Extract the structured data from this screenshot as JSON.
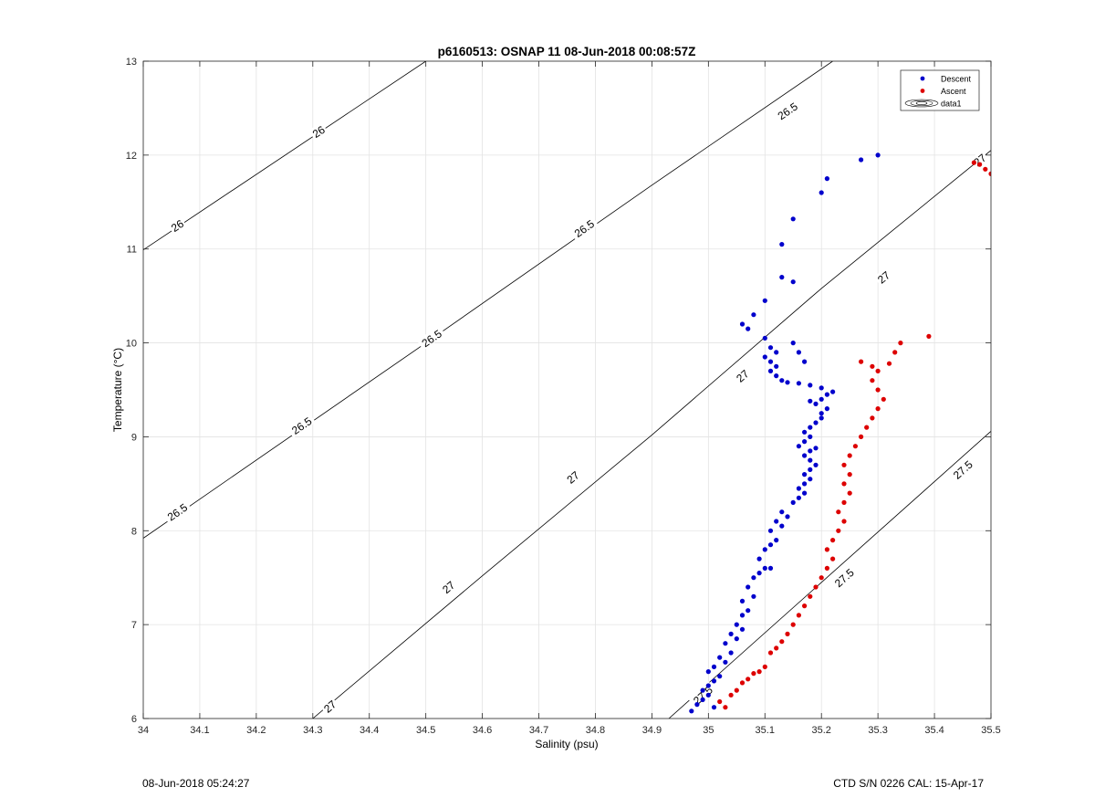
{
  "chart_data": {
    "type": "scatter",
    "title": "p6160513: OSNAP 11 08-Jun-2018 00:08:57Z",
    "xlabel": "Salinity (psu)",
    "ylabel": "Temperature (°C)",
    "xlim": [
      34,
      35.5
    ],
    "ylim": [
      6,
      13
    ],
    "x_ticks": [
      "34",
      "34.1",
      "34.2",
      "34.3",
      "34.4",
      "34.5",
      "34.6",
      "34.7",
      "34.8",
      "34.9",
      "35",
      "35.1",
      "35.2",
      "35.3",
      "35.4",
      "35.5"
    ],
    "y_ticks": [
      "6",
      "7",
      "8",
      "9",
      "10",
      "11",
      "12",
      "13"
    ],
    "grid": true,
    "legend_position": "top-right",
    "legend": [
      "Descent",
      "Ascent",
      "data1"
    ],
    "colors": {
      "descent": "#0000cc",
      "ascent": "#dd0000",
      "contour": "#000000"
    },
    "contours": [
      {
        "label": "26",
        "points": [
          [
            34.0,
            10.99
          ],
          [
            34.5,
            13.0
          ]
        ],
        "labels_at": [
          [
            34.06,
            11.25
          ],
          [
            34.31,
            12.25
          ]
        ]
      },
      {
        "label": "26.5",
        "points": [
          [
            34.0,
            7.92
          ],
          [
            34.5,
            10.0
          ],
          [
            34.9,
            11.68
          ],
          [
            35.22,
            13.0
          ]
        ],
        "labels_at": [
          [
            34.06,
            8.2
          ],
          [
            34.28,
            9.12
          ],
          [
            34.51,
            10.05
          ],
          [
            34.78,
            11.22
          ],
          [
            35.14,
            12.47
          ]
        ]
      },
      {
        "label": "27",
        "points": [
          [
            34.3,
            6.0
          ],
          [
            34.6,
            7.52
          ],
          [
            34.9,
            9.02
          ],
          [
            35.2,
            10.58
          ],
          [
            35.5,
            12.05
          ]
        ],
        "labels_at": [
          [
            34.33,
            6.13
          ],
          [
            34.54,
            7.4
          ],
          [
            34.76,
            8.57
          ],
          [
            35.06,
            9.65
          ],
          [
            35.31,
            10.7
          ],
          [
            35.48,
            11.95
          ]
        ]
      },
      {
        "label": "27.5",
        "points": [
          [
            34.93,
            6.0
          ],
          [
            35.2,
            7.45
          ],
          [
            35.5,
            9.06
          ]
        ],
        "labels_at": [
          [
            34.99,
            6.25
          ],
          [
            35.24,
            7.5
          ],
          [
            35.45,
            8.65
          ]
        ]
      }
    ],
    "series": [
      {
        "name": "Descent",
        "color": "#0000cc",
        "points": [
          [
            34.97,
            6.08
          ],
          [
            34.98,
            6.15
          ],
          [
            34.99,
            6.2
          ],
          [
            35.0,
            6.25
          ],
          [
            35.01,
            6.12
          ],
          [
            34.99,
            6.3
          ],
          [
            35.0,
            6.35
          ],
          [
            35.01,
            6.4
          ],
          [
            35.02,
            6.45
          ],
          [
            35.0,
            6.5
          ],
          [
            35.01,
            6.55
          ],
          [
            35.03,
            6.6
          ],
          [
            35.02,
            6.65
          ],
          [
            35.04,
            6.7
          ],
          [
            35.03,
            6.8
          ],
          [
            35.05,
            6.85
          ],
          [
            35.04,
            6.9
          ],
          [
            35.06,
            6.95
          ],
          [
            35.05,
            7.0
          ],
          [
            35.06,
            7.1
          ],
          [
            35.07,
            7.15
          ],
          [
            35.06,
            7.25
          ],
          [
            35.08,
            7.3
          ],
          [
            35.07,
            7.4
          ],
          [
            35.08,
            7.5
          ],
          [
            35.09,
            7.55
          ],
          [
            35.1,
            7.6
          ],
          [
            35.11,
            7.6
          ],
          [
            35.09,
            7.7
          ],
          [
            35.1,
            7.8
          ],
          [
            35.11,
            7.85
          ],
          [
            35.12,
            7.9
          ],
          [
            35.11,
            8.0
          ],
          [
            35.13,
            8.05
          ],
          [
            35.12,
            8.1
          ],
          [
            35.14,
            8.15
          ],
          [
            35.13,
            8.2
          ],
          [
            35.15,
            8.3
          ],
          [
            35.16,
            8.35
          ],
          [
            35.17,
            8.4
          ],
          [
            35.16,
            8.45
          ],
          [
            35.17,
            8.5
          ],
          [
            35.18,
            8.55
          ],
          [
            35.17,
            8.6
          ],
          [
            35.18,
            8.65
          ],
          [
            35.19,
            8.7
          ],
          [
            35.18,
            8.75
          ],
          [
            35.17,
            8.8
          ],
          [
            35.18,
            8.85
          ],
          [
            35.19,
            8.88
          ],
          [
            35.16,
            8.9
          ],
          [
            35.17,
            8.95
          ],
          [
            35.18,
            9.0
          ],
          [
            35.17,
            9.05
          ],
          [
            35.18,
            9.1
          ],
          [
            35.19,
            9.15
          ],
          [
            35.2,
            9.2
          ],
          [
            35.2,
            9.25
          ],
          [
            35.21,
            9.3
          ],
          [
            35.19,
            9.35
          ],
          [
            35.18,
            9.38
          ],
          [
            35.2,
            9.4
          ],
          [
            35.21,
            9.45
          ],
          [
            35.22,
            9.48
          ],
          [
            35.2,
            9.52
          ],
          [
            35.18,
            9.55
          ],
          [
            35.16,
            9.57
          ],
          [
            35.14,
            9.58
          ],
          [
            35.13,
            9.6
          ],
          [
            35.12,
            9.65
          ],
          [
            35.11,
            9.7
          ],
          [
            35.12,
            9.75
          ],
          [
            35.11,
            9.8
          ],
          [
            35.1,
            9.85
          ],
          [
            35.12,
            9.9
          ],
          [
            35.11,
            9.95
          ],
          [
            35.1,
            10.05
          ],
          [
            35.15,
            10.0
          ],
          [
            35.16,
            9.9
          ],
          [
            35.17,
            9.8
          ],
          [
            35.07,
            10.15
          ],
          [
            35.06,
            10.2
          ],
          [
            35.08,
            10.3
          ],
          [
            35.1,
            10.45
          ],
          [
            35.13,
            10.7
          ],
          [
            35.15,
            10.65
          ],
          [
            35.13,
            11.05
          ],
          [
            35.15,
            11.32
          ],
          [
            35.2,
            11.6
          ],
          [
            35.21,
            11.75
          ],
          [
            35.27,
            11.95
          ],
          [
            35.3,
            12.0
          ]
        ]
      },
      {
        "name": "Ascent",
        "color": "#dd0000",
        "points": [
          [
            35.02,
            6.18
          ],
          [
            35.03,
            6.12
          ],
          [
            35.04,
            6.25
          ],
          [
            35.05,
            6.3
          ],
          [
            35.06,
            6.38
          ],
          [
            35.07,
            6.42
          ],
          [
            35.08,
            6.48
          ],
          [
            35.09,
            6.5
          ],
          [
            35.1,
            6.55
          ],
          [
            35.11,
            6.7
          ],
          [
            35.12,
            6.75
          ],
          [
            35.13,
            6.82
          ],
          [
            35.14,
            6.9
          ],
          [
            35.15,
            7.0
          ],
          [
            35.16,
            7.1
          ],
          [
            35.17,
            7.2
          ],
          [
            35.18,
            7.3
          ],
          [
            35.19,
            7.4
          ],
          [
            35.2,
            7.5
          ],
          [
            35.21,
            7.6
          ],
          [
            35.22,
            7.7
          ],
          [
            35.21,
            7.8
          ],
          [
            35.22,
            7.9
          ],
          [
            35.23,
            8.0
          ],
          [
            35.24,
            8.1
          ],
          [
            35.23,
            8.2
          ],
          [
            35.24,
            8.3
          ],
          [
            35.25,
            8.4
          ],
          [
            35.24,
            8.5
          ],
          [
            35.25,
            8.6
          ],
          [
            35.24,
            8.7
          ],
          [
            35.25,
            8.8
          ],
          [
            35.26,
            8.9
          ],
          [
            35.27,
            9.0
          ],
          [
            35.28,
            9.1
          ],
          [
            35.29,
            9.2
          ],
          [
            35.3,
            9.3
          ],
          [
            35.31,
            9.4
          ],
          [
            35.3,
            9.5
          ],
          [
            35.29,
            9.6
          ],
          [
            35.3,
            9.7
          ],
          [
            35.29,
            9.75
          ],
          [
            35.27,
            9.8
          ],
          [
            35.32,
            9.78
          ],
          [
            35.33,
            9.9
          ],
          [
            35.34,
            10.0
          ],
          [
            35.39,
            10.07
          ],
          [
            35.47,
            11.92
          ],
          [
            35.48,
            11.9
          ],
          [
            35.49,
            11.85
          ],
          [
            35.5,
            11.8
          ]
        ]
      }
    ]
  },
  "footer": {
    "left": "08-Jun-2018 05:24:27",
    "right": "CTD S/N 0226  CAL: 15-Apr-17"
  }
}
